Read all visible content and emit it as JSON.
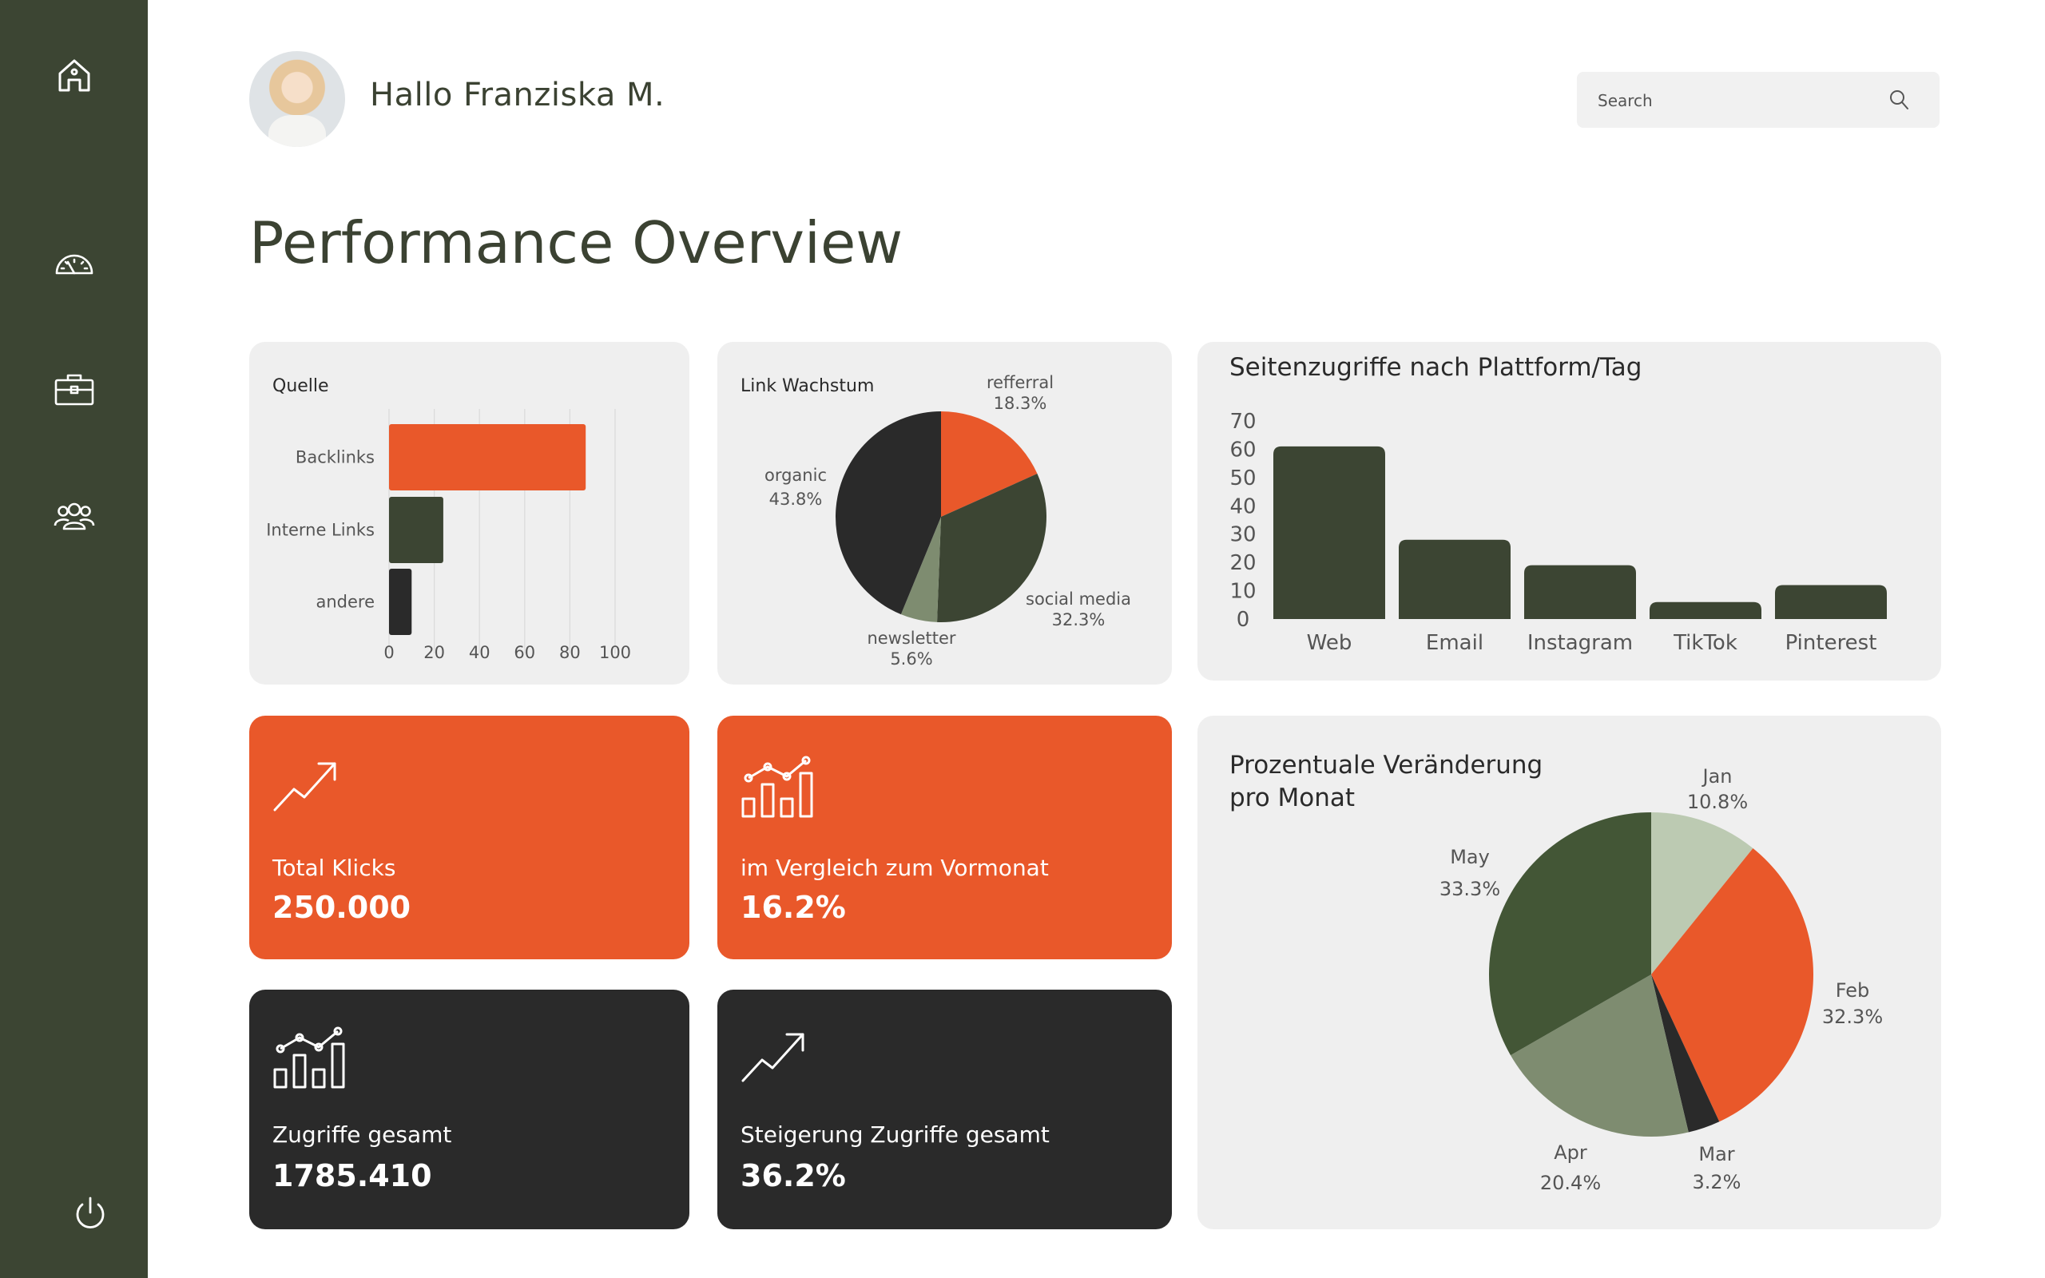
{
  "header": {
    "greeting": "Hallo Franziska M."
  },
  "search": {
    "placeholder": "Search"
  },
  "page_title": "Performance Overview",
  "sidebar": {
    "items": [
      "home-icon",
      "dashboard-icon",
      "briefcase-icon",
      "users-icon",
      "power-icon"
    ]
  },
  "colors": {
    "sidebar": "#3c4533",
    "orange": "#e9582a",
    "dark_green": "#3c4533",
    "sage": "#7e8c70",
    "light_sage": "#bccab2",
    "charcoal": "#2a2a2a",
    "card": "#efefef"
  },
  "stats": [
    {
      "label": "Total Klicks",
      "value": "250.000",
      "icon": "trend-up-icon",
      "theme": "orange"
    },
    {
      "label": "im Vergleich zum Vormonat",
      "value": "16.2%",
      "icon": "bar-line-chart-icon",
      "theme": "orange"
    },
    {
      "label": "Zugriffe gesamt",
      "value": "1785.410",
      "icon": "bar-line-chart-icon",
      "theme": "dark"
    },
    {
      "label": "Steigerung Zugriffe gesamt",
      "value": "36.2%",
      "icon": "trend-up-icon",
      "theme": "dark"
    }
  ],
  "chart_data": [
    {
      "type": "bar",
      "orientation": "horizontal",
      "title": "Quelle",
      "categories": [
        "Backlinks",
        "Interne Links",
        "andere"
      ],
      "values": [
        87,
        24,
        10
      ],
      "colors": [
        "#e9582a",
        "#3c4533",
        "#2a2a2a"
      ],
      "xlim": [
        0,
        100
      ],
      "xticks": [
        "0",
        "20",
        "40",
        "60",
        "80",
        "100"
      ],
      "grid": true
    },
    {
      "type": "pie",
      "title": "Link Wachstum",
      "slices": [
        {
          "label": "refferral",
          "value": 18.3,
          "value_label": "18.3%",
          "color": "#e9582a"
        },
        {
          "label": "social media",
          "value": 32.3,
          "value_label": "32.3%",
          "color": "#3c4533"
        },
        {
          "label": "newsletter",
          "value": 5.6,
          "value_label": "5.6%",
          "color": "#7e8c70"
        },
        {
          "label": "organic",
          "value": 43.8,
          "value_label": "43.8%",
          "color": "#2a2a2a"
        }
      ]
    },
    {
      "type": "bar",
      "title": "Seitenzugriffe nach Plattform/Tag",
      "categories": [
        "Web",
        "Email",
        "Instagram",
        "TikTok",
        "Pinterest"
      ],
      "values": [
        61,
        28,
        19,
        6,
        12
      ],
      "ylim": [
        0,
        70
      ],
      "yticks": [
        "70",
        "60",
        "50",
        "40",
        "30",
        "20",
        "10",
        "0"
      ],
      "color": "#3c4533"
    },
    {
      "type": "pie",
      "title_lines": [
        "Prozentuale Veränderung",
        "pro Monat"
      ],
      "slices": [
        {
          "label": "Jan",
          "value": 10.8,
          "value_label": "10.8%",
          "color": "#bccab2"
        },
        {
          "label": "Feb",
          "value": 32.3,
          "value_label": "32.3%",
          "color": "#e9582a"
        },
        {
          "label": "Mar",
          "value": 3.2,
          "value_label": "3.2%",
          "color": "#2a2a2a"
        },
        {
          "label": "Apr",
          "value": 20.4,
          "value_label": "20.4%",
          "color": "#7e8c70"
        },
        {
          "label": "May",
          "value": 33.3,
          "value_label": "33.3%",
          "color": "#435636"
        }
      ]
    }
  ]
}
